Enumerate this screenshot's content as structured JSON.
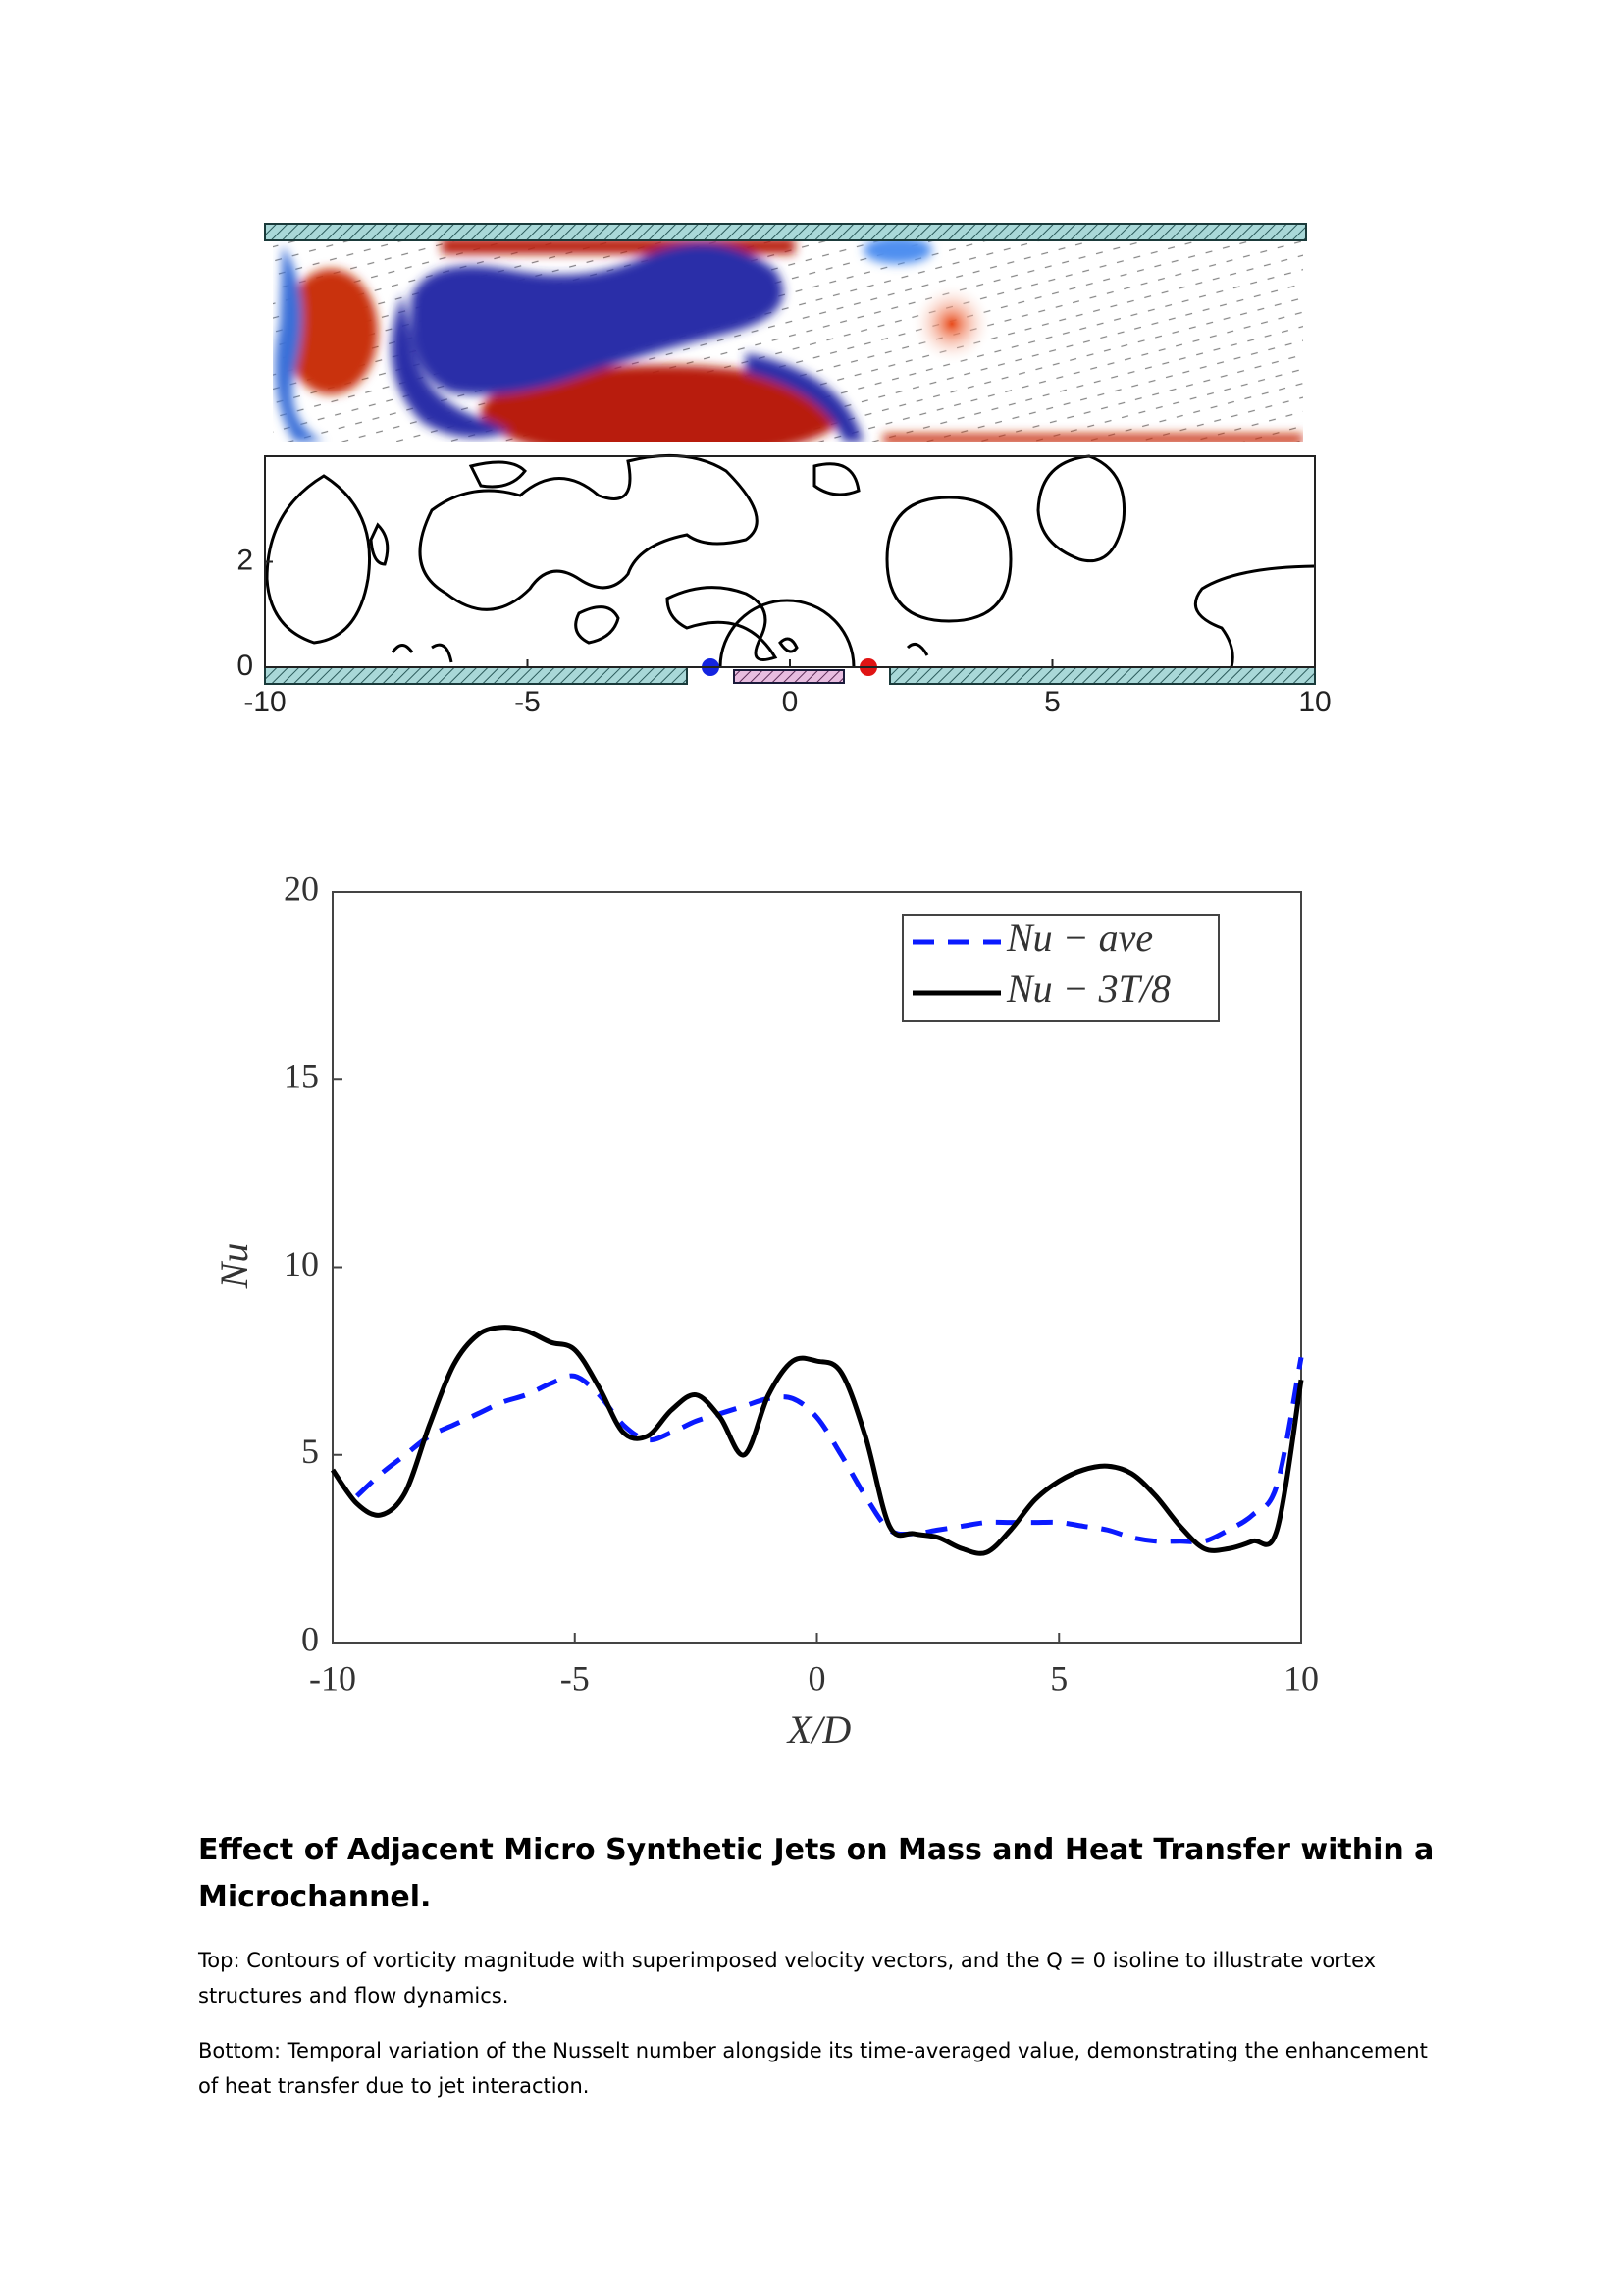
{
  "chart_data": [
    {
      "type": "contour",
      "xlim": [
        -10,
        10
      ],
      "ylim": [
        0,
        4
      ],
      "xticks": [
        -10,
        -5,
        0,
        5,
        10
      ],
      "yticks": [
        0,
        2
      ]
    },
    {
      "type": "line",
      "xlabel": "X/D",
      "ylabel": "Nu",
      "x": [
        -10,
        -9.5,
        -9,
        -8.5,
        -8,
        -7.5,
        -7,
        -6.5,
        -6,
        -5.5,
        -5,
        -4.5,
        -4,
        -3.5,
        -3,
        -2.5,
        -2,
        -1.5,
        -1,
        -0.5,
        0,
        0.5,
        1,
        1.5,
        2,
        2.5,
        3,
        3.5,
        4,
        4.5,
        5,
        5.5,
        6,
        6.5,
        7,
        7.5,
        8,
        8.5,
        9,
        9.5,
        10
      ],
      "series": [
        {
          "name": "Nu − ave",
          "color": "#0a1aff",
          "style": "dashed",
          "values": [
            null,
            3.9,
            4.5,
            5.0,
            5.5,
            5.8,
            6.1,
            6.4,
            6.6,
            6.9,
            7.1,
            6.6,
            5.8,
            5.4,
            5.6,
            5.9,
            6.1,
            6.3,
            6.5,
            6.5,
            6.0,
            5.0,
            3.9,
            3.0,
            2.9,
            3.0,
            3.1,
            3.2,
            3.2,
            3.2,
            3.2,
            3.1,
            3.0,
            2.8,
            2.7,
            2.7,
            2.7,
            3.0,
            3.4,
            4.2,
            7.6
          ]
        },
        {
          "name": "Nu − 3T/8",
          "color": "#000000",
          "style": "solid",
          "values": [
            4.6,
            3.7,
            3.4,
            4.0,
            5.8,
            7.4,
            8.2,
            8.4,
            8.3,
            8.0,
            7.8,
            6.8,
            5.6,
            5.5,
            6.2,
            6.6,
            6.0,
            5.0,
            6.6,
            7.5,
            7.5,
            7.2,
            5.5,
            3.1,
            2.9,
            2.8,
            2.5,
            2.4,
            3.0,
            3.8,
            4.3,
            4.6,
            4.7,
            4.5,
            3.9,
            3.1,
            2.5,
            2.5,
            2.7,
            3.0,
            7.0
          ]
        }
      ],
      "xlim": [
        -10,
        10
      ],
      "ylim": [
        0,
        20
      ],
      "xticks": [
        -10,
        -5,
        0,
        5,
        10
      ],
      "yticks": [
        0,
        5,
        10,
        15,
        20
      ],
      "legend": "upper right"
    }
  ],
  "caption": {
    "title": "Effect of Adjacent Micro Synthetic Jets on Mass and Heat Transfer within a Microchannel.",
    "paragraphs": [
      "Top: Contours of vorticity magnitude with superimposed velocity vectors, and the Q = 0 isoline to illustrate vortex structures and flow dynamics.",
      "Bottom: Temporal variation of the Nusselt number alongside its time-averaged value, demonstrating the enhancement of heat transfer due to jet interaction."
    ]
  }
}
